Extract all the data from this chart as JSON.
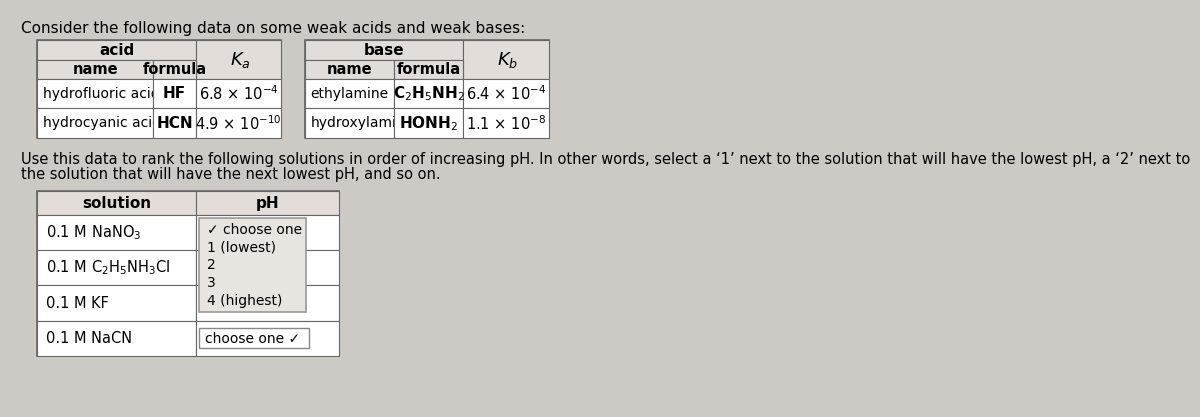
{
  "title": "Consider the following data on some weak acids and weak bases:",
  "bg_color": "#cdc9c4",
  "table_bg": "#e2ddd8",
  "cell_bg": "#ffffff",
  "border_color": "#666666",
  "acid_table": {
    "rows": [
      {
        "name": "hydrofluoric acid",
        "formula": "HF",
        "ka": "6.8 × 10",
        "ka_exp": "-4"
      },
      {
        "name": "hydrocyanic acid",
        "formula": "HCN",
        "ka": "4.9 × 10",
        "ka_exp": "-10"
      }
    ]
  },
  "base_table": {
    "rows": [
      {
        "name": "ethylamine",
        "formula": "C$_2$H$_5$NH$_2$",
        "kb": "6.4 × 10",
        "kb_exp": "-4"
      },
      {
        "name": "hydroxylamine",
        "formula": "HONH$_2$",
        "kb": "1.1 × 10",
        "kb_exp": "-8"
      }
    ]
  },
  "instruction_line1": "Use this data to rank the following solutions in order of increasing pH. In other words, select a ‘1’ next to the solution that will have the lowest pH, a ‘2’ next to",
  "instruction_line2": "the solution that will have the next lowest pH, and so on.",
  "solution_rows": [
    "0.1 M NaNO$_3$",
    "0.1 M C$_2$H$_5$NH$_3$Cl",
    "0.1 M KF",
    "0.1 M NaCN"
  ],
  "dropdown_open_options": [
    "✓ choose one",
    "1 (lowest)",
    "2",
    "3",
    "4 (highest)"
  ],
  "dropdown_closed_text": "choose one ✓"
}
